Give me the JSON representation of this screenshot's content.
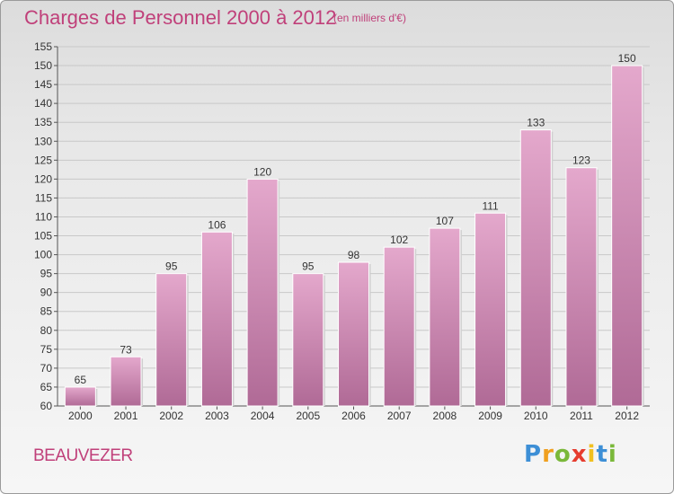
{
  "header": {
    "title": "Charges de Personnel 2000 à 2012",
    "subtitle": "(en milliers d'€)"
  },
  "commune": "BEAUVEZER",
  "logo": {
    "text": "Proxiti",
    "letters": [
      "P",
      "r",
      "o",
      "x",
      "i",
      "t",
      "i"
    ],
    "colors": [
      "#3d8fd6",
      "#f0a020",
      "#7ab83a",
      "#e63c2e",
      "#f0c020",
      "#3d8fd6",
      "#7ab83a"
    ]
  },
  "colors": {
    "accent": "#c0407a",
    "bar_top": "#e4a8cc",
    "bar_bottom": "#b06a96",
    "grid": "#c8c8c8"
  },
  "chart_data": {
    "type": "bar",
    "categories": [
      "2000",
      "2001",
      "2002",
      "2003",
      "2004",
      "2005",
      "2006",
      "2007",
      "2008",
      "2009",
      "2010",
      "2011",
      "2012"
    ],
    "values": [
      65,
      73,
      95,
      106,
      120,
      95,
      98,
      102,
      107,
      111,
      133,
      123,
      150
    ],
    "data_labels": [
      "65",
      "73",
      "95",
      "106",
      "120",
      "95",
      "98",
      "102",
      "107",
      "111",
      "133",
      "123",
      "150"
    ],
    "yticks": [
      60,
      65,
      70,
      75,
      80,
      85,
      90,
      95,
      100,
      105,
      110,
      115,
      120,
      125,
      130,
      135,
      140,
      145,
      150,
      155
    ],
    "ylim": [
      60,
      155
    ],
    "grid": true
  }
}
